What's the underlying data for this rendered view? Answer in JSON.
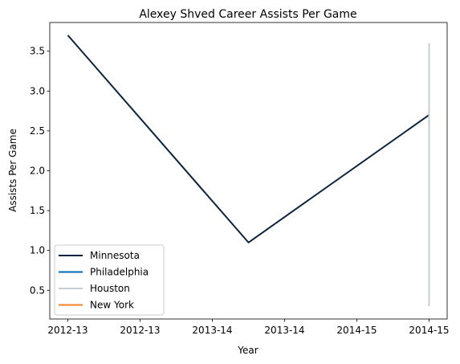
{
  "chart_data": {
    "type": "line",
    "title": "Alexey Shved Career Assists Per Game",
    "xlabel": "Year",
    "ylabel": "Assists Per Game",
    "x_tick_labels": [
      "2012-13",
      "2012-13",
      "2013-14",
      "2013-14",
      "2014-15",
      "2014-15"
    ],
    "x_range": [
      -0.1,
      2.1
    ],
    "ylim": [
      0.14,
      3.86
    ],
    "y_ticks": [
      0.5,
      1.0,
      1.5,
      2.0,
      2.5,
      3.0,
      3.5
    ],
    "y_tick_labels": [
      "0.5",
      "1.0",
      "1.5",
      "2.0",
      "2.5",
      "3.0",
      "3.5"
    ],
    "grid": false,
    "legend_position": "lower-left",
    "series": [
      {
        "name": "Minnesota",
        "color": "#0c2340",
        "x": [
          0,
          1,
          2
        ],
        "y": [
          3.7,
          1.1,
          2.7
        ]
      },
      {
        "name": "Philadelphia",
        "color": "#006bb6",
        "x": [
          2,
          2
        ],
        "y": [
          2.7,
          2.7
        ]
      },
      {
        "name": "Houston",
        "color": "#c4ced4",
        "x": [
          2,
          2
        ],
        "y": [
          3.6,
          0.3
        ]
      },
      {
        "name": "New York",
        "color": "#f58426",
        "x": [
          2,
          2
        ],
        "y": [
          0.3,
          0.3
        ]
      }
    ]
  }
}
